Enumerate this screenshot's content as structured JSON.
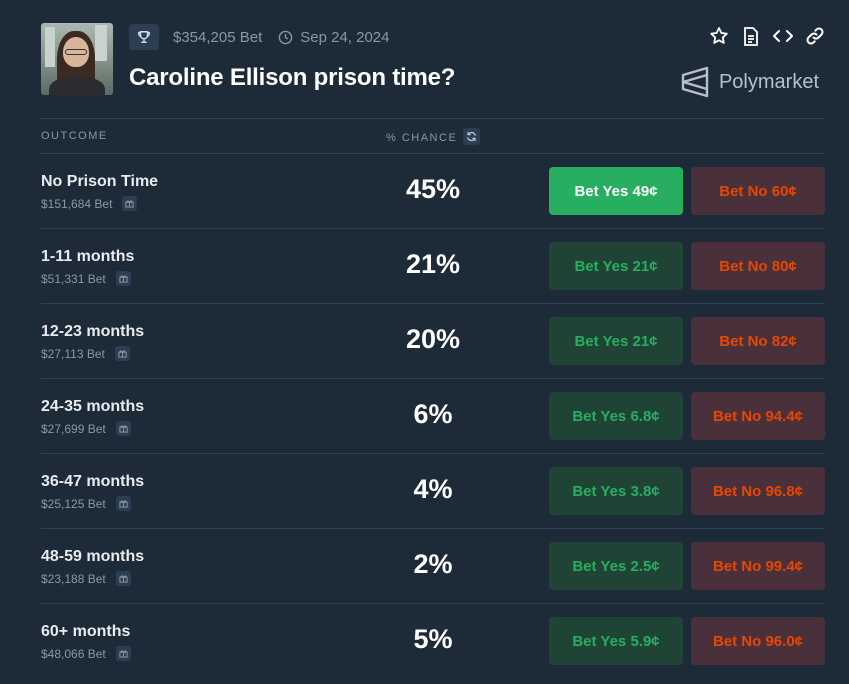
{
  "market": {
    "title": "Caroline Ellison prison time?",
    "volume": "$354,205 Bet",
    "date": "Sep 24, 2024",
    "brand": "Polymarket",
    "icons": {
      "trophy": "trophy-icon",
      "clock": "clock-icon",
      "star": "star-icon",
      "document": "document-icon",
      "embed": "code-icon",
      "link": "link-icon",
      "refresh": "refresh-icon",
      "gift": "gift-icon"
    }
  },
  "table": {
    "col_outcome": "OUTCOME",
    "col_chance": "% CHANCE"
  },
  "colors": {
    "background": "#1d2b39",
    "yes_active": "#27ae60",
    "yes_text": "#27ae60",
    "no_text": "#e64800"
  },
  "outcomes": [
    {
      "name": "No Prison Time",
      "volume": "$151,684 Bet",
      "chance": "45%",
      "yes": "Bet Yes 49¢",
      "no": "Bet No 60¢",
      "selected": true
    },
    {
      "name": "1-11 months",
      "volume": "$51,331 Bet",
      "chance": "21%",
      "yes": "Bet Yes 21¢",
      "no": "Bet No 80¢"
    },
    {
      "name": "12-23 months",
      "volume": "$27,113 Bet",
      "chance": "20%",
      "yes": "Bet Yes 21¢",
      "no": "Bet No 82¢"
    },
    {
      "name": "24-35 months",
      "volume": "$27,699 Bet",
      "chance": "6%",
      "yes": "Bet Yes 6.8¢",
      "no": "Bet No 94.4¢"
    },
    {
      "name": "36-47 months",
      "volume": "$25,125 Bet",
      "chance": "4%",
      "yes": "Bet Yes 3.8¢",
      "no": "Bet No 96.8¢"
    },
    {
      "name": "48-59 months",
      "volume": "$23,188 Bet",
      "chance": "2%",
      "yes": "Bet Yes 2.5¢",
      "no": "Bet No 99.4¢"
    },
    {
      "name": "60+ months",
      "volume": "$48,066 Bet",
      "chance": "5%",
      "yes": "Bet Yes 5.9¢",
      "no": "Bet No 96.0¢"
    }
  ]
}
